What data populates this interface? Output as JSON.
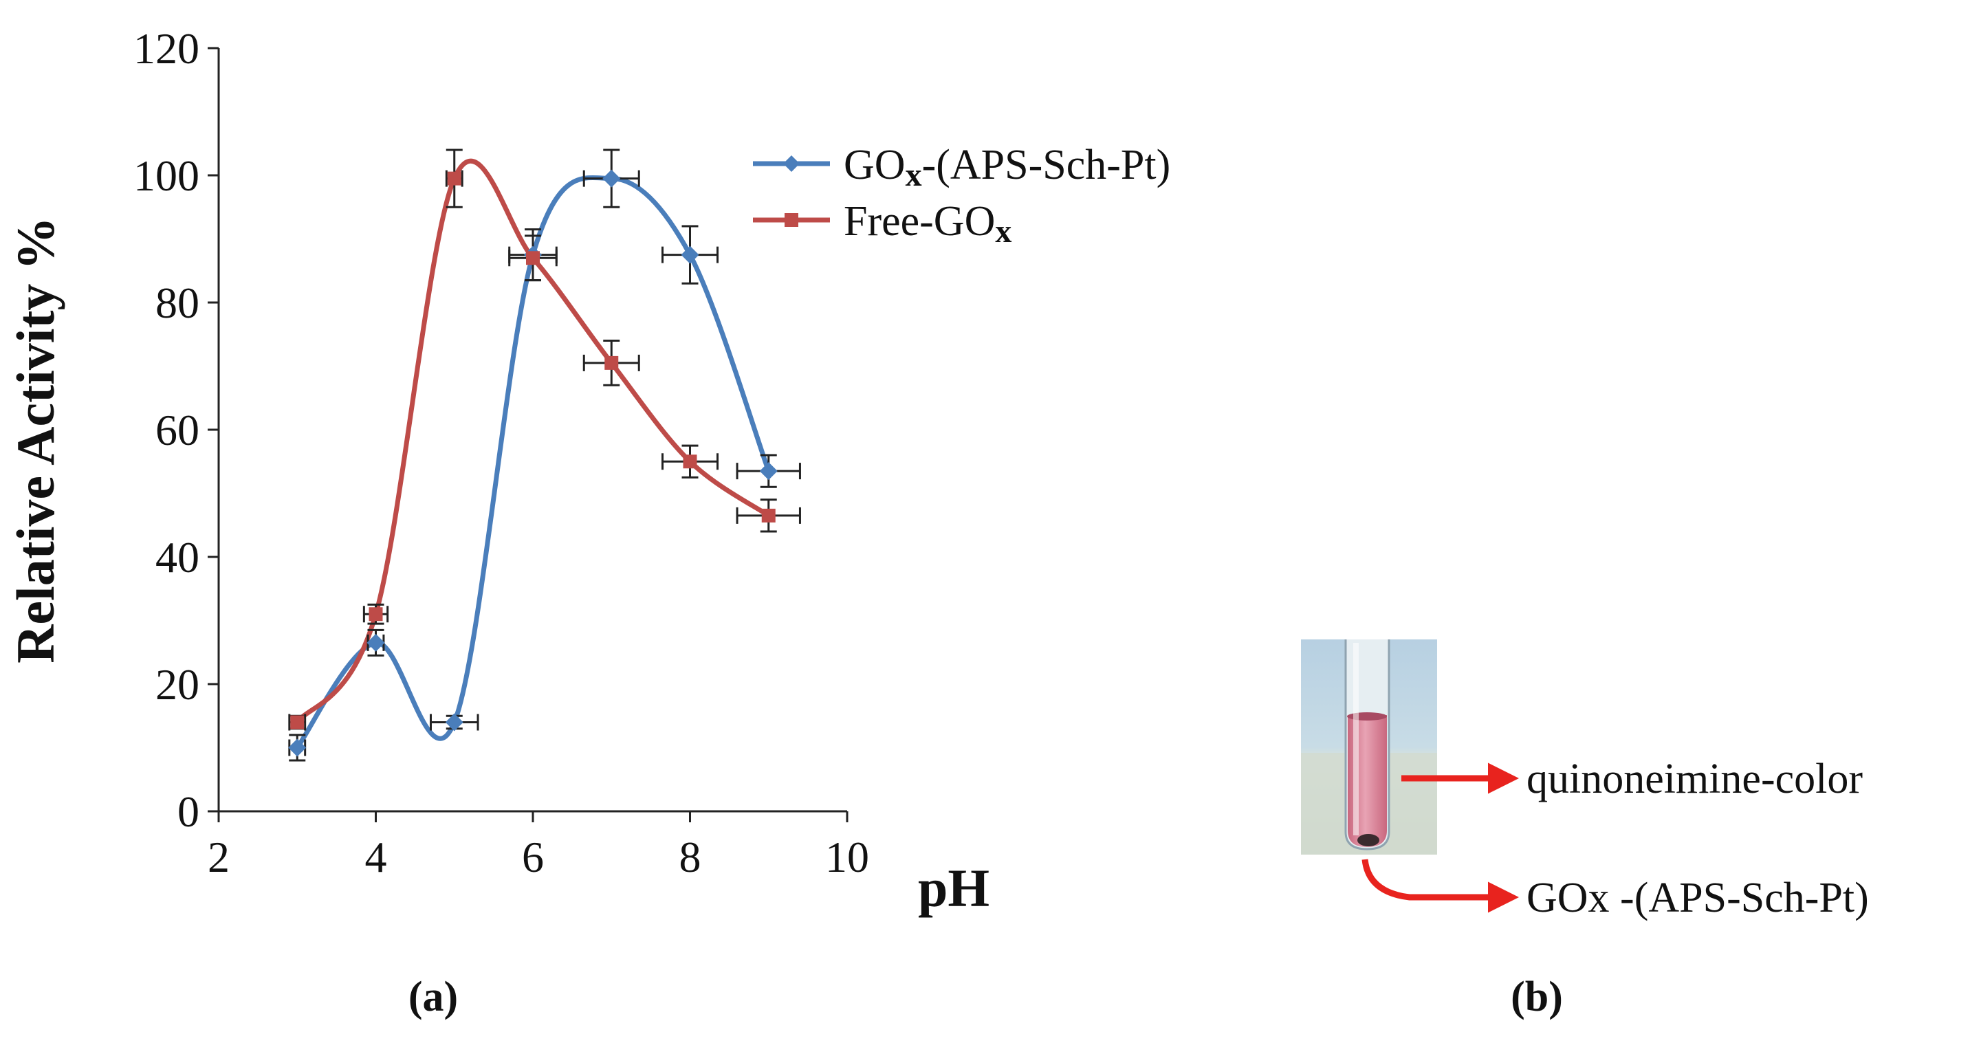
{
  "chart_data": {
    "type": "line",
    "xlabel": "pH",
    "ylabel": "Relative Activity %",
    "xlim": [
      2,
      10
    ],
    "ylim": [
      0,
      120
    ],
    "xticks": [
      2,
      4,
      6,
      8,
      10
    ],
    "yticks": [
      0,
      20,
      40,
      60,
      80,
      100,
      120
    ],
    "grid": false,
    "legend_position": "top-right",
    "series": [
      {
        "name": "GOx-(APS-Sch-Pt)",
        "color": "#4a7ebb",
        "marker": "diamond",
        "x": [
          3,
          4,
          5,
          6,
          7,
          8,
          9
        ],
        "y": [
          10,
          26.5,
          14,
          87.5,
          99.5,
          87.5,
          53.5
        ],
        "yerr": [
          2,
          2,
          1,
          4,
          4.5,
          4.5,
          2.5
        ],
        "xerr": [
          0.1,
          0.1,
          0.3,
          0.3,
          0.35,
          0.35,
          0.4
        ]
      },
      {
        "name": "Free-GOx",
        "color": "#be4b48",
        "marker": "square",
        "x": [
          3,
          4,
          5,
          6,
          7,
          8,
          9
        ],
        "y": [
          14,
          31,
          99.5,
          87,
          70.5,
          55,
          46.5
        ],
        "yerr": [
          1,
          1.5,
          4.5,
          3.5,
          3.5,
          2.5,
          2.5
        ],
        "xerr": [
          0.1,
          0.15,
          0.1,
          0.3,
          0.35,
          0.35,
          0.4
        ]
      }
    ]
  },
  "legend": {
    "items": [
      {
        "prefix": "GO",
        "sub": "x",
        "suffix": "-(APS-Sch-Pt)",
        "color": "#4a7ebb"
      },
      {
        "prefix": "Free-GO",
        "sub": "x",
        "suffix": "",
        "color": "#be4b48"
      }
    ]
  },
  "panels": {
    "a_label": "(a)",
    "b_label": "(b)"
  },
  "annotations": {
    "color_label": "quinoneimine-color",
    "enzyme_label": "GOx -(APS-Sch-Pt)",
    "arrow_color": "#e8231e"
  }
}
